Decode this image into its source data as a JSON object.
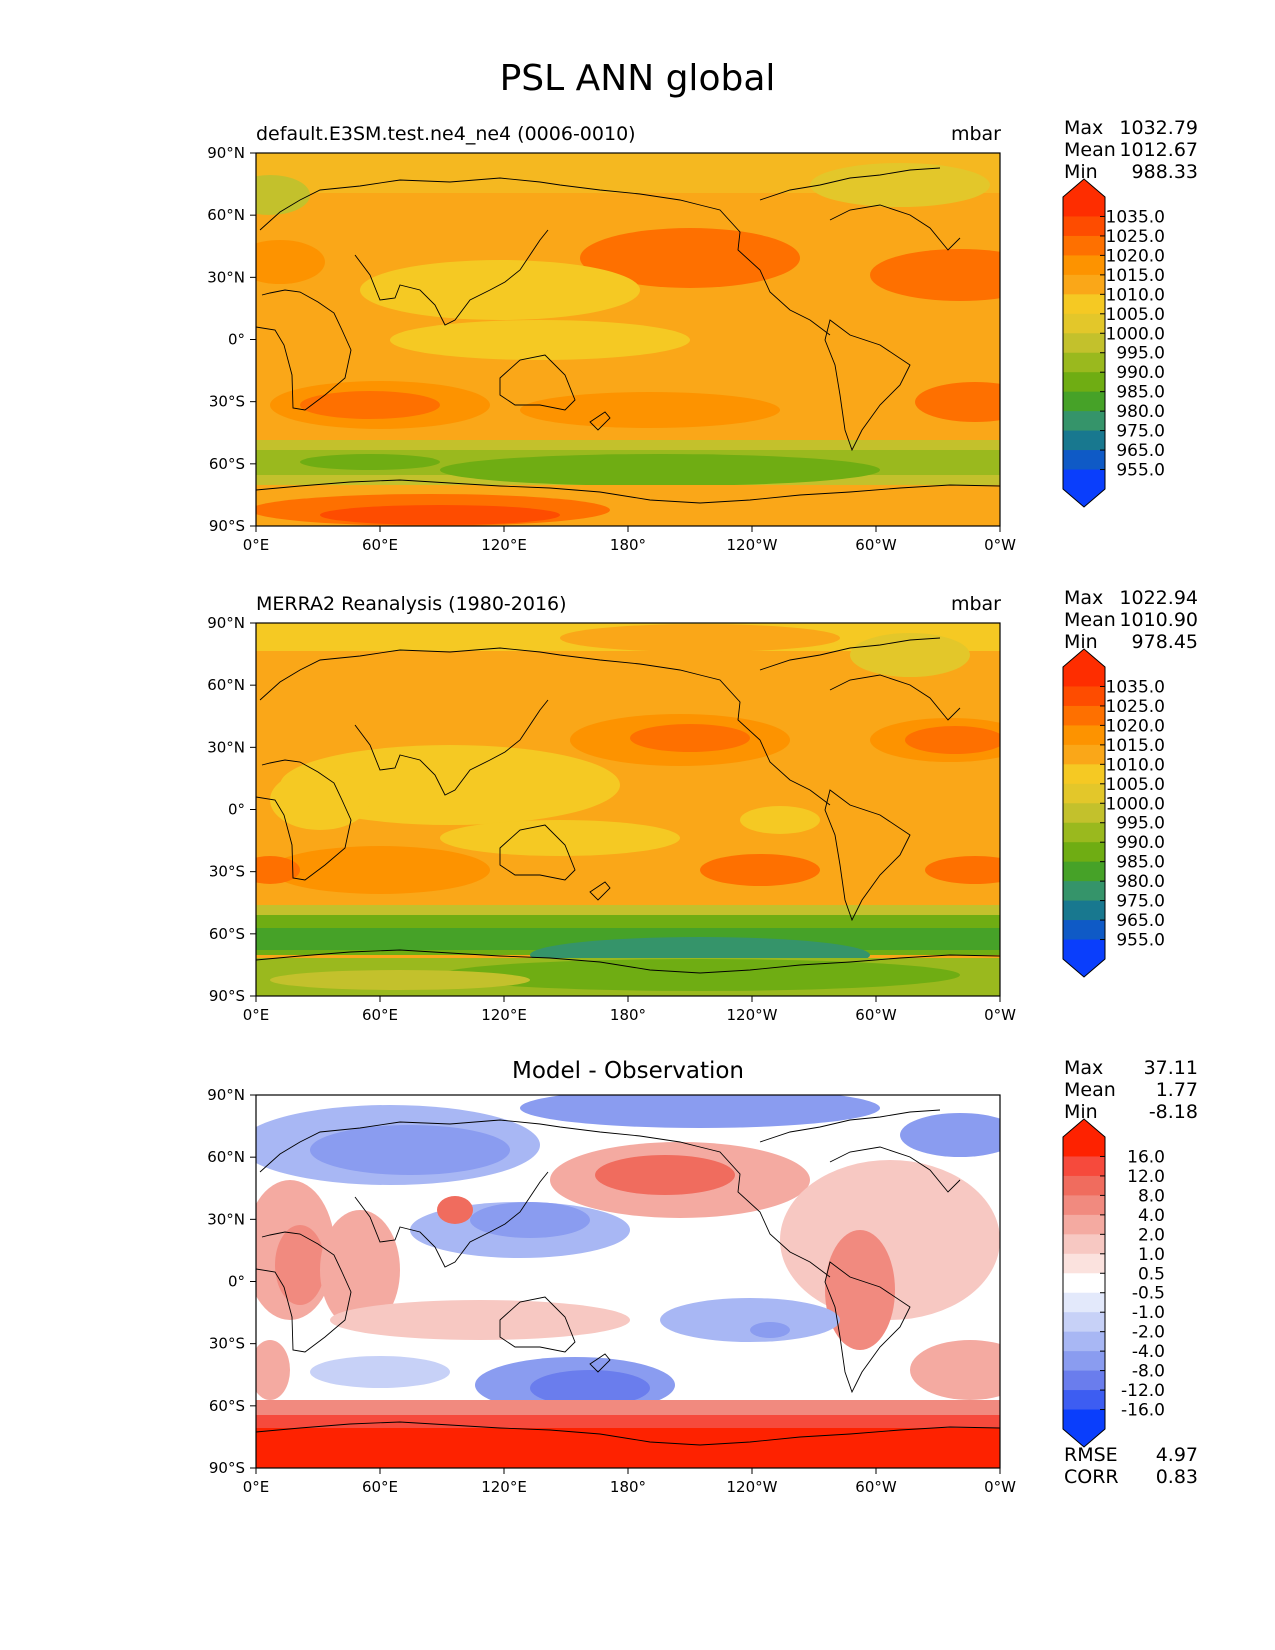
{
  "title": "PSL ANN global",
  "chart_data": [
    {
      "type": "heatmap",
      "title": "default.E3SM.test.ne4_ne4 (0006-0010)",
      "units": "mbar",
      "xticks": [
        "0°E",
        "60°E",
        "120°E",
        "180°",
        "120°W",
        "60°W",
        "0°W"
      ],
      "yticks": [
        "90°N",
        "60°N",
        "30°N",
        "0°",
        "30°S",
        "60°S",
        "90°S"
      ],
      "xlim": [
        0,
        360
      ],
      "ylim": [
        -90,
        90
      ],
      "stats": {
        "max_label": "Max",
        "max": "1032.79",
        "mean_label": "Mean",
        "mean": "1012.67",
        "min_label": "Min",
        "min": "988.33"
      },
      "colorbar": {
        "labels": [
          "1035.0",
          "1025.0",
          "1020.0",
          "1015.0",
          "1010.0",
          "1005.0",
          "1000.0",
          "995.0",
          "990.0",
          "985.0",
          "980.0",
          "975.0",
          "965.0",
          "955.0"
        ],
        "colors": [
          "#fe2d00",
          "#fe4c00",
          "#fe7000",
          "#fd9300",
          "#faa718",
          "#f5c923",
          "#e3c72a",
          "#c3c12c",
          "#9ab91e",
          "#6fad13",
          "#46a228",
          "#35946a",
          "#18788f",
          "#0f5ac6",
          "#0a3efc"
        ]
      }
    },
    {
      "type": "heatmap",
      "title": "MERRA2 Reanalysis (1980-2016)",
      "units": "mbar",
      "xticks": [
        "0°E",
        "60°E",
        "120°E",
        "180°",
        "120°W",
        "60°W",
        "0°W"
      ],
      "yticks": [
        "90°N",
        "60°N",
        "30°N",
        "0°",
        "30°S",
        "60°S",
        "90°S"
      ],
      "xlim": [
        0,
        360
      ],
      "ylim": [
        -90,
        90
      ],
      "stats": {
        "max_label": "Max",
        "max": "1022.94",
        "mean_label": "Mean",
        "mean": "1010.90",
        "min_label": "Min",
        "min": "978.45"
      },
      "colorbar": {
        "labels": [
          "1035.0",
          "1025.0",
          "1020.0",
          "1015.0",
          "1010.0",
          "1005.0",
          "1000.0",
          "995.0",
          "990.0",
          "985.0",
          "980.0",
          "975.0",
          "965.0",
          "955.0"
        ],
        "colors": [
          "#fe2d00",
          "#fe4c00",
          "#fe7000",
          "#fd9300",
          "#faa718",
          "#f5c923",
          "#e3c72a",
          "#c3c12c",
          "#9ab91e",
          "#6fad13",
          "#46a228",
          "#35946a",
          "#18788f",
          "#0f5ac6",
          "#0a3efc"
        ]
      }
    },
    {
      "type": "heatmap",
      "title": "Model - Observation",
      "units": "",
      "xticks": [
        "0°E",
        "60°E",
        "120°E",
        "180°",
        "120°W",
        "60°W",
        "0°W"
      ],
      "yticks": [
        "90°N",
        "60°N",
        "30°N",
        "0°",
        "30°S",
        "60°S",
        "90°S"
      ],
      "xlim": [
        0,
        360
      ],
      "ylim": [
        -90,
        90
      ],
      "stats": {
        "max_label": "Max",
        "max": "37.11",
        "mean_label": "Mean",
        "mean": "1.77",
        "min_label": "Min",
        "min": "-8.18"
      },
      "metrics": {
        "rmse_label": "RMSE",
        "rmse": "4.97",
        "corr_label": "CORR",
        "corr": "0.83"
      },
      "colorbar": {
        "labels": [
          "16.0",
          "12.0",
          "8.0",
          "4.0",
          "2.0",
          "1.0",
          "0.5",
          "-0.5",
          "-1.0",
          "-2.0",
          "-4.0",
          "-8.0",
          "-12.0",
          "-16.0"
        ],
        "colors": [
          "#fe2200",
          "#f64a3c",
          "#f06c5e",
          "#f18a7f",
          "#f4aaa1",
          "#f7c8c2",
          "#fbe2de",
          "#ffffff",
          "#e3e9fb",
          "#c7d1f7",
          "#a8b7f4",
          "#8a9cf0",
          "#6a7ded",
          "#3d5df2",
          "#0a3efc"
        ]
      }
    }
  ]
}
